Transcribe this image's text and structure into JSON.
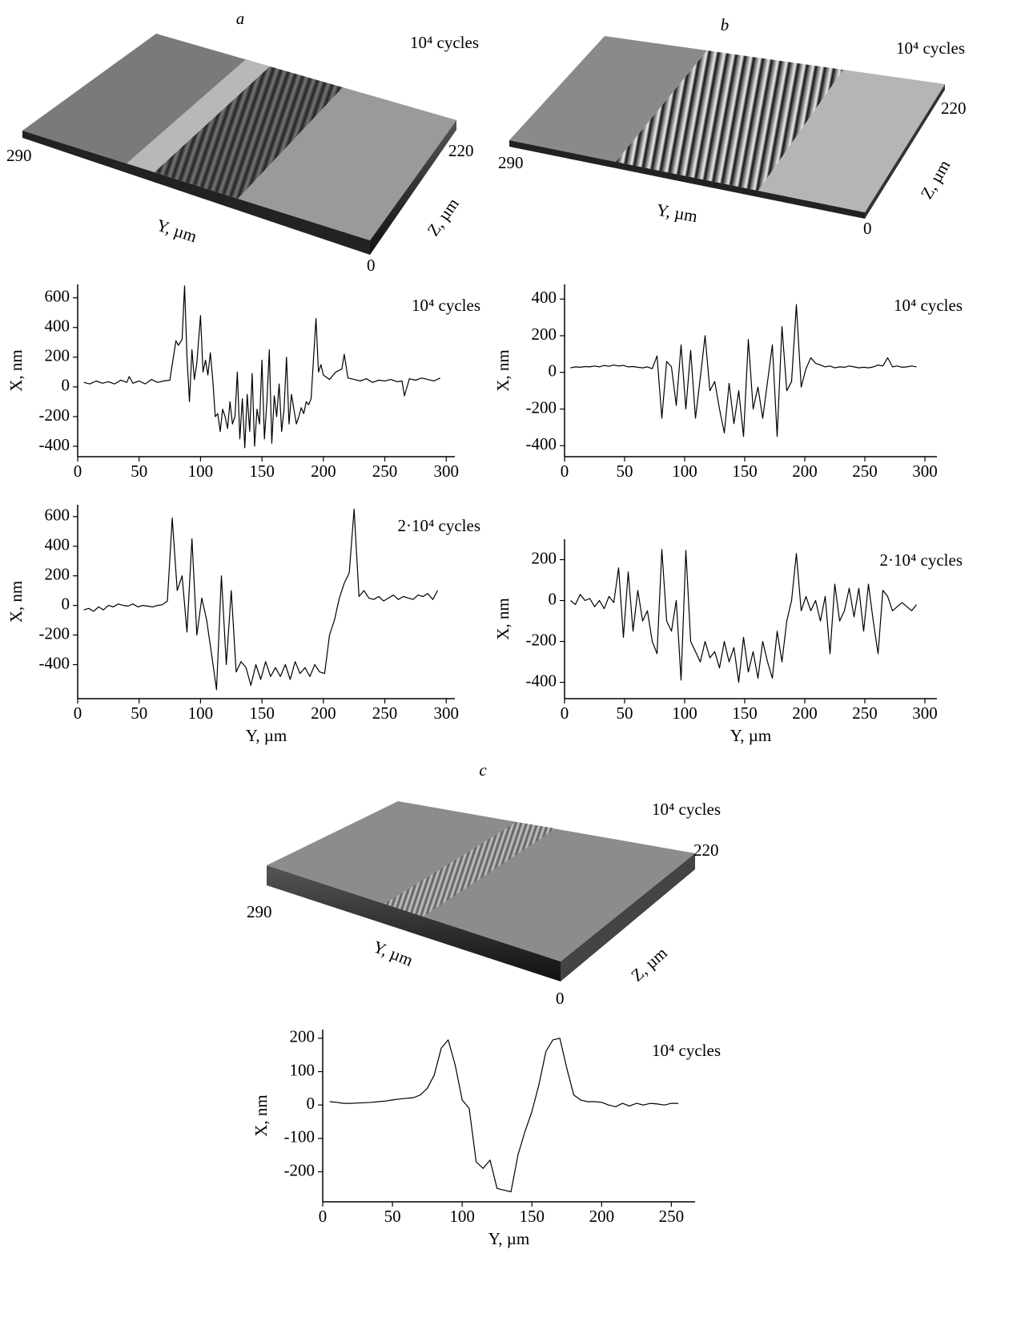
{
  "panel_labels": [
    "a",
    "b",
    "c"
  ],
  "surfaces": [
    {
      "annotation": "10⁴ cycles",
      "y_label": "Y, µm",
      "z_label": "Z, µm",
      "y_max": 290,
      "z_max": 220,
      "origin": 0
    },
    {
      "annotation": "10⁴ cycles",
      "y_label": "Y, µm",
      "z_label": "Z, µm",
      "y_max": 290,
      "z_max": 220,
      "origin": 0
    },
    {
      "annotation": "10⁴ cycles",
      "y_label": "Y, µm",
      "z_label": "Z, µm",
      "y_max": 290,
      "z_max": 220,
      "origin": 0
    }
  ],
  "chart_data": [
    {
      "type": "line",
      "annotation": "10⁴ cycles",
      "y_label": "X, nm",
      "color": "#000000",
      "xlim": [
        0,
        307
      ],
      "ylim": [
        -470,
        690
      ],
      "xticks": [
        0,
        50,
        100,
        150,
        200,
        250,
        300
      ],
      "yticks": [
        -400,
        -200,
        0,
        200,
        400,
        600
      ],
      "x": [
        5,
        10,
        15,
        20,
        25,
        30,
        35,
        40,
        42,
        45,
        50,
        55,
        60,
        65,
        70,
        75,
        77,
        80,
        82,
        85,
        87,
        89,
        91,
        93,
        95,
        97,
        100,
        102,
        104,
        106,
        108,
        110,
        112,
        114,
        116,
        118,
        120,
        122,
        124,
        126,
        128,
        130,
        132,
        134,
        136,
        138,
        140,
        142,
        144,
        146,
        148,
        150,
        152,
        154,
        156,
        158,
        160,
        162,
        164,
        166,
        168,
        170,
        172,
        174,
        176,
        178,
        180,
        182,
        184,
        186,
        188,
        190,
        192,
        194,
        196,
        198,
        200,
        205,
        210,
        215,
        217,
        220,
        225,
        230,
        235,
        240,
        245,
        250,
        255,
        260,
        264,
        266,
        270,
        275,
        280,
        285,
        290,
        295
      ],
      "values": [
        30,
        20,
        40,
        25,
        35,
        20,
        45,
        30,
        70,
        25,
        40,
        20,
        50,
        30,
        40,
        45,
        150,
        310,
        280,
        320,
        680,
        200,
        -100,
        250,
        50,
        160,
        480,
        100,
        180,
        80,
        230,
        40,
        -200,
        -180,
        -300,
        -150,
        -200,
        -280,
        -100,
        -250,
        -200,
        100,
        -350,
        -80,
        -410,
        -50,
        -300,
        90,
        -400,
        -150,
        -250,
        180,
        -350,
        -100,
        250,
        -380,
        -60,
        -200,
        20,
        -300,
        -150,
        200,
        -250,
        -50,
        -150,
        -250,
        -200,
        -140,
        -180,
        -100,
        -120,
        -80,
        200,
        460,
        100,
        150,
        80,
        50,
        100,
        120,
        220,
        60,
        50,
        40,
        55,
        30,
        45,
        40,
        50,
        35,
        40,
        -60,
        55,
        45,
        60,
        50,
        40,
        60
      ]
    },
    {
      "type": "line",
      "annotation": "2·10⁴ cycles",
      "y_label": "X, nm",
      "x_label": "Y, µm",
      "color": "#000000",
      "xlim": [
        0,
        307
      ],
      "ylim": [
        -630,
        680
      ],
      "xticks": [
        0,
        50,
        100,
        150,
        200,
        250,
        300
      ],
      "yticks": [
        -400,
        -200,
        0,
        200,
        400,
        600
      ],
      "x": [
        5,
        9,
        13,
        17,
        21,
        25,
        29,
        33,
        37,
        41,
        45,
        49,
        53,
        57,
        61,
        65,
        69,
        73,
        77,
        81,
        85,
        89,
        93,
        97,
        101,
        105,
        109,
        113,
        117,
        121,
        125,
        129,
        133,
        137,
        141,
        145,
        149,
        153,
        157,
        161,
        165,
        169,
        173,
        177,
        181,
        185,
        189,
        193,
        197,
        201,
        205,
        209,
        213,
        217,
        221,
        225,
        229,
        233,
        237,
        241,
        245,
        249,
        253,
        257,
        261,
        265,
        269,
        273,
        277,
        281,
        285,
        289,
        293
      ],
      "values": [
        -30,
        -20,
        -40,
        -10,
        -30,
        0,
        -10,
        10,
        0,
        -5,
        10,
        -10,
        0,
        -5,
        -10,
        0,
        5,
        30,
        590,
        100,
        200,
        -180,
        450,
        -200,
        50,
        -100,
        -330,
        -570,
        200,
        -400,
        100,
        -450,
        -380,
        -420,
        -540,
        -400,
        -500,
        -380,
        -480,
        -420,
        -480,
        -400,
        -500,
        -380,
        -460,
        -420,
        -480,
        -400,
        -450,
        -460,
        -200,
        -100,
        50,
        150,
        220,
        650,
        60,
        100,
        50,
        40,
        60,
        30,
        50,
        70,
        40,
        60,
        50,
        40,
        70,
        60,
        80,
        40,
        100
      ]
    },
    {
      "type": "line",
      "annotation": "10⁴ cycles",
      "y_label": "X, nm",
      "color": "#000000",
      "xlim": [
        0,
        310
      ],
      "ylim": [
        -460,
        480
      ],
      "xticks": [
        0,
        50,
        100,
        150,
        200,
        250,
        300
      ],
      "yticks": [
        -400,
        -200,
        0,
        200,
        400
      ],
      "x": [
        5,
        9,
        13,
        17,
        21,
        25,
        29,
        33,
        37,
        41,
        45,
        49,
        53,
        57,
        61,
        65,
        69,
        73,
        77,
        81,
        85,
        89,
        93,
        97,
        101,
        105,
        109,
        113,
        117,
        121,
        125,
        129,
        133,
        137,
        141,
        145,
        149,
        153,
        157,
        161,
        165,
        169,
        173,
        177,
        181,
        185,
        189,
        193,
        197,
        201,
        205,
        209,
        213,
        217,
        221,
        225,
        229,
        233,
        237,
        241,
        245,
        249,
        253,
        257,
        261,
        265,
        269,
        273,
        277,
        281,
        285,
        289,
        293
      ],
      "values": [
        25,
        30,
        28,
        32,
        30,
        35,
        30,
        38,
        33,
        40,
        35,
        38,
        30,
        32,
        28,
        25,
        30,
        20,
        90,
        -250,
        60,
        30,
        -180,
        150,
        -200,
        120,
        -250,
        -30,
        200,
        -100,
        -50,
        -200,
        -330,
        -60,
        -280,
        -100,
        -350,
        180,
        -200,
        -80,
        -250,
        -50,
        150,
        -350,
        250,
        -100,
        -50,
        370,
        -80,
        20,
        80,
        50,
        40,
        30,
        35,
        25,
        30,
        28,
        35,
        30,
        25,
        28,
        25,
        30,
        40,
        35,
        80,
        30,
        35,
        28,
        30,
        35,
        30
      ]
    },
    {
      "type": "line",
      "annotation": "2·10⁴ cycles",
      "y_label": "X, nm",
      "x_label": "Y, µm",
      "color": "#000000",
      "xlim": [
        0,
        310
      ],
      "ylim": [
        -480,
        300
      ],
      "xticks": [
        0,
        50,
        100,
        150,
        200,
        250,
        300
      ],
      "yticks": [
        -400,
        -200,
        0,
        200
      ],
      "x": [
        5,
        9,
        13,
        17,
        21,
        25,
        29,
        33,
        37,
        41,
        45,
        49,
        53,
        57,
        61,
        65,
        69,
        73,
        77,
        81,
        85,
        89,
        93,
        97,
        101,
        105,
        109,
        113,
        117,
        121,
        125,
        129,
        133,
        137,
        141,
        145,
        149,
        153,
        157,
        161,
        165,
        169,
        173,
        177,
        181,
        185,
        189,
        193,
        197,
        201,
        205,
        209,
        213,
        217,
        221,
        225,
        229,
        233,
        237,
        241,
        245,
        249,
        253,
        257,
        261,
        265,
        269,
        273,
        277,
        281,
        285,
        289,
        293
      ],
      "values": [
        0,
        -20,
        30,
        0,
        10,
        -30,
        0,
        -40,
        20,
        -10,
        160,
        -180,
        140,
        -150,
        50,
        -100,
        -50,
        -200,
        -260,
        250,
        -100,
        -150,
        0,
        -390,
        245,
        -200,
        -250,
        -300,
        -200,
        -280,
        -250,
        -330,
        -200,
        -300,
        -230,
        -400,
        -180,
        -350,
        -250,
        -380,
        -200,
        -300,
        -380,
        -150,
        -300,
        -100,
        0,
        230,
        -50,
        20,
        -50,
        0,
        -100,
        20,
        -260,
        80,
        -100,
        -50,
        60,
        -80,
        60,
        -150,
        80,
        -100,
        -260,
        50,
        20,
        -50,
        -30,
        -10,
        -30,
        -50,
        -20
      ]
    },
    {
      "type": "line",
      "annotation": "10⁴ cycles",
      "y_label": "X, nm",
      "x_label": "Y, µm",
      "color": "#000000",
      "xlim": [
        0,
        267
      ],
      "ylim": [
        -290,
        226
      ],
      "xticks": [
        0,
        50,
        100,
        150,
        200,
        250
      ],
      "yticks": [
        -200,
        -100,
        0,
        100,
        200
      ],
      "x": [
        5,
        10,
        15,
        20,
        25,
        30,
        35,
        40,
        45,
        50,
        55,
        60,
        65,
        70,
        75,
        80,
        85,
        90,
        95,
        100,
        105,
        110,
        115,
        120,
        125,
        130,
        135,
        140,
        145,
        150,
        155,
        160,
        165,
        170,
        175,
        180,
        185,
        190,
        195,
        200,
        205,
        210,
        215,
        220,
        225,
        230,
        235,
        240,
        245,
        250,
        255
      ],
      "values": [
        10,
        8,
        5,
        5,
        6,
        7,
        8,
        10,
        12,
        15,
        18,
        20,
        22,
        30,
        50,
        90,
        170,
        195,
        120,
        15,
        -10,
        -170,
        -190,
        -165,
        -250,
        -255,
        -260,
        -150,
        -80,
        -20,
        60,
        160,
        195,
        200,
        110,
        30,
        15,
        10,
        10,
        8,
        0,
        -5,
        5,
        -3,
        5,
        0,
        5,
        3,
        0,
        5,
        5
      ]
    }
  ]
}
